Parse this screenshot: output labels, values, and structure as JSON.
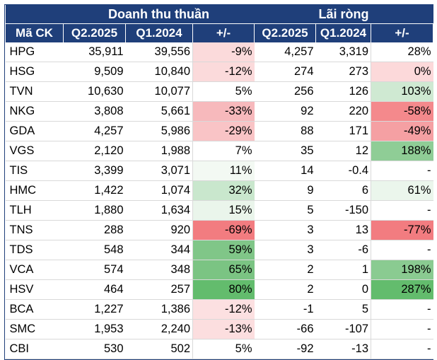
{
  "header": {
    "group_revenue": "Doanh thu thuần",
    "group_profit": "Lãi ròng",
    "col_code": "Mã CK",
    "col_q2_rev": "Q2.2025",
    "col_q1_rev": "Q1.2024",
    "col_pct_rev": "+/-",
    "col_q2_profit": "Q2.2025",
    "col_q1_profit": "Q1.2024",
    "col_pct_profit": "+/-"
  },
  "colors": {
    "header_bg": "#1f3f7a",
    "negative_scale": [
      "#fce8e9",
      "#f8c3c6",
      "#f27c80"
    ],
    "positive_scale": [
      "#f1f8f2",
      "#c9e7cd",
      "#8fcd96",
      "#63bc6d"
    ]
  },
  "rows": [
    {
      "code": "HPG",
      "q2_rev": "35,911",
      "q1_rev": "39,556",
      "pct_rev": "-9%",
      "q2_profit": "4,257",
      "q1_profit": "3,319",
      "pct_profit": "28%",
      "rev_bg": "#fbdadb",
      "profit_bg": "#ffffff"
    },
    {
      "code": "HSG",
      "q2_rev": "9,509",
      "q1_rev": "10,840",
      "pct_rev": "-12%",
      "q2_profit": "274",
      "q1_profit": "273",
      "pct_profit": "0%",
      "rev_bg": "#fbdadb",
      "profit_bg": "#fcd9da"
    },
    {
      "code": "TVN",
      "q2_rev": "10,630",
      "q1_rev": "10,077",
      "pct_rev": "5%",
      "q2_profit": "256",
      "q1_profit": "126",
      "pct_profit": "103%",
      "rev_bg": "#ffffff",
      "profit_bg": "#cfe9d2"
    },
    {
      "code": "NKG",
      "q2_rev": "3,808",
      "q1_rev": "5,661",
      "pct_rev": "-33%",
      "q2_profit": "92",
      "q1_profit": "220",
      "pct_profit": "-58%",
      "rev_bg": "#f7b9bc",
      "profit_bg": "#f4898c"
    },
    {
      "code": "GDA",
      "q2_rev": "4,257",
      "q1_rev": "5,986",
      "pct_rev": "-29%",
      "q2_profit": "88",
      "q1_profit": "171",
      "pct_profit": "-49%",
      "rev_bg": "#f9c4c6",
      "profit_bg": "#f5a0a3"
    },
    {
      "code": "VGS",
      "q2_rev": "2,120",
      "q1_rev": "1,988",
      "pct_rev": "7%",
      "q2_profit": "35",
      "q1_profit": "12",
      "pct_profit": "188%",
      "rev_bg": "#ffffff",
      "profit_bg": "#8fcd96"
    },
    {
      "code": "TIS",
      "q2_rev": "3,399",
      "q1_rev": "3,071",
      "pct_rev": "11%",
      "q2_profit": "14",
      "q1_profit": "-0.4",
      "pct_profit": "-",
      "rev_bg": "#f3f9f3",
      "profit_bg": "#ffffff"
    },
    {
      "code": "HMC",
      "q2_rev": "1,422",
      "q1_rev": "1,074",
      "pct_rev": "32%",
      "q2_profit": "9",
      "q1_profit": "6",
      "pct_profit": "61%",
      "rev_bg": "#c9e7cd",
      "profit_bg": "#ebf6ec"
    },
    {
      "code": "TLH",
      "q2_rev": "1,880",
      "q1_rev": "1,634",
      "pct_rev": "15%",
      "q2_profit": "5",
      "q1_profit": "-150",
      "pct_profit": "-",
      "rev_bg": "#eaf5eb",
      "profit_bg": "#ffffff"
    },
    {
      "code": "TNS",
      "q2_rev": "288",
      "q1_rev": "920",
      "pct_rev": "-69%",
      "q2_profit": "3",
      "q1_profit": "13",
      "pct_profit": "-77%",
      "rev_bg": "#f27c80",
      "profit_bg": "#f27c80"
    },
    {
      "code": "TDS",
      "q2_rev": "548",
      "q1_rev": "344",
      "pct_rev": "59%",
      "q2_profit": "3",
      "q1_profit": "-6",
      "pct_profit": "-",
      "rev_bg": "#80c688",
      "profit_bg": "#ffffff"
    },
    {
      "code": "VCA",
      "q2_rev": "574",
      "q1_rev": "348",
      "pct_rev": "65%",
      "q2_profit": "2",
      "q1_profit": "1",
      "pct_profit": "198%",
      "rev_bg": "#7bc483",
      "profit_bg": "#8acb91"
    },
    {
      "code": "HSV",
      "q2_rev": "464",
      "q1_rev": "257",
      "pct_rev": "80%",
      "q2_profit": "2",
      "q1_profit": "0",
      "pct_profit": "287%",
      "rev_bg": "#63bc6d",
      "profit_bg": "#63bc6d"
    },
    {
      "code": "BCA",
      "q2_rev": "1,227",
      "q1_rev": "1,386",
      "pct_rev": "-12%",
      "q2_profit": "-1",
      "q1_profit": "5",
      "pct_profit": "-",
      "rev_bg": "#fce0e1",
      "profit_bg": "#ffffff"
    },
    {
      "code": "SMC",
      "q2_rev": "1,953",
      "q1_rev": "2,240",
      "pct_rev": "-13%",
      "q2_profit": "-66",
      "q1_profit": "-107",
      "pct_profit": "-",
      "rev_bg": "#fcdedf",
      "profit_bg": "#ffffff"
    },
    {
      "code": "CBI",
      "q2_rev": "530",
      "q1_rev": "502",
      "pct_rev": "5%",
      "q2_profit": "-92",
      "q1_profit": "-13",
      "pct_profit": "-",
      "rev_bg": "#ffffff",
      "profit_bg": "#ffffff"
    }
  ]
}
